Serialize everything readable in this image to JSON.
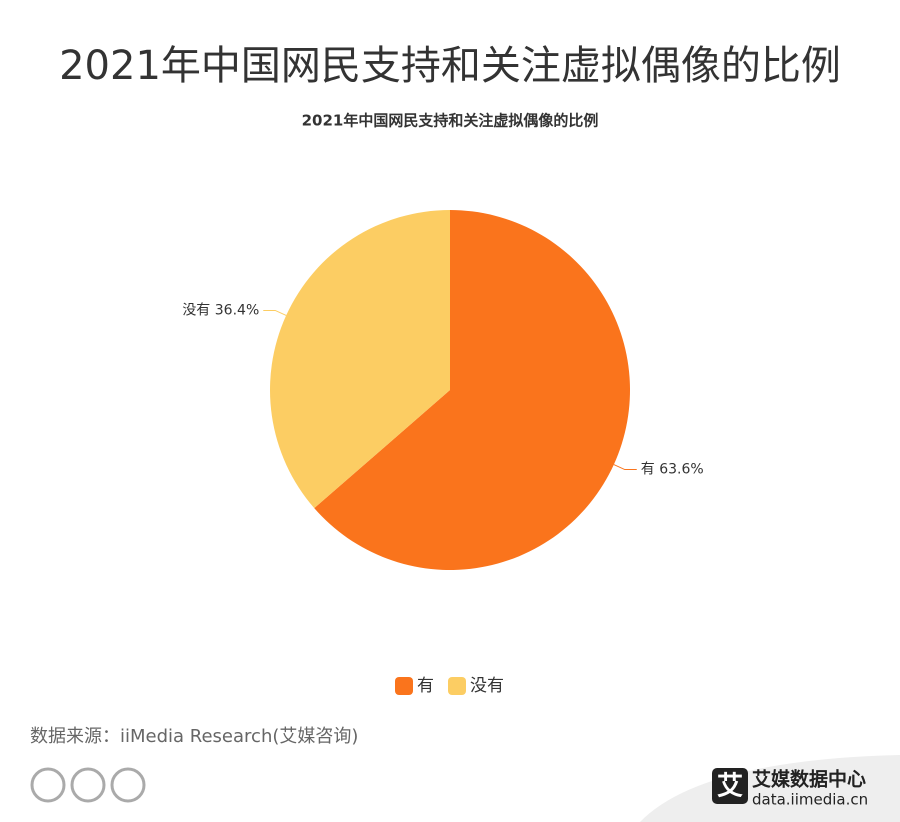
{
  "page_title": "2021年中国网民支持和关注虚拟偶像的比例",
  "source": "数据来源：iiMedia Research(艾媒咨询)",
  "logo": {
    "mark": "艾",
    "name": "艾媒数据中心",
    "url": "data.iimedia.cn"
  },
  "chart_data": {
    "type": "pie",
    "title": "2021年中国网民支持和关注虚拟偶像的比例",
    "categories": [
      "有",
      "没有"
    ],
    "values": [
      63.6,
      36.4
    ],
    "value_labels": [
      "63.6%",
      "36.4%"
    ],
    "colors": [
      "#fa741c",
      "#fccd63"
    ],
    "legend": "bottom"
  }
}
